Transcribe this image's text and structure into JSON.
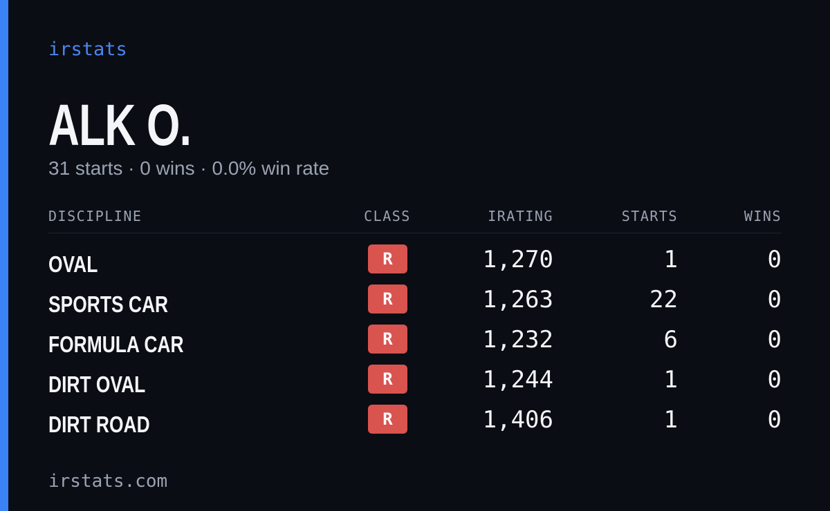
{
  "brand": "irstats",
  "driver": {
    "name": "ALK O.",
    "summary": "31 starts · 0 wins · 0.0% win rate"
  },
  "table": {
    "headers": [
      "DISCIPLINE",
      "CLASS",
      "IRATING",
      "STARTS",
      "WINS"
    ],
    "rows": [
      [
        "OVAL",
        "R",
        "1,270",
        "1",
        "0"
      ],
      [
        "SPORTS CAR",
        "R",
        "1,263",
        "22",
        "0"
      ],
      [
        "FORMULA CAR",
        "R",
        "1,232",
        "6",
        "0"
      ],
      [
        "DIRT OVAL",
        "R",
        "1,244",
        "1",
        "0"
      ],
      [
        "DIRT ROAD",
        "R",
        "1,406",
        "1",
        "0"
      ]
    ]
  },
  "footer": "irstats.com"
}
